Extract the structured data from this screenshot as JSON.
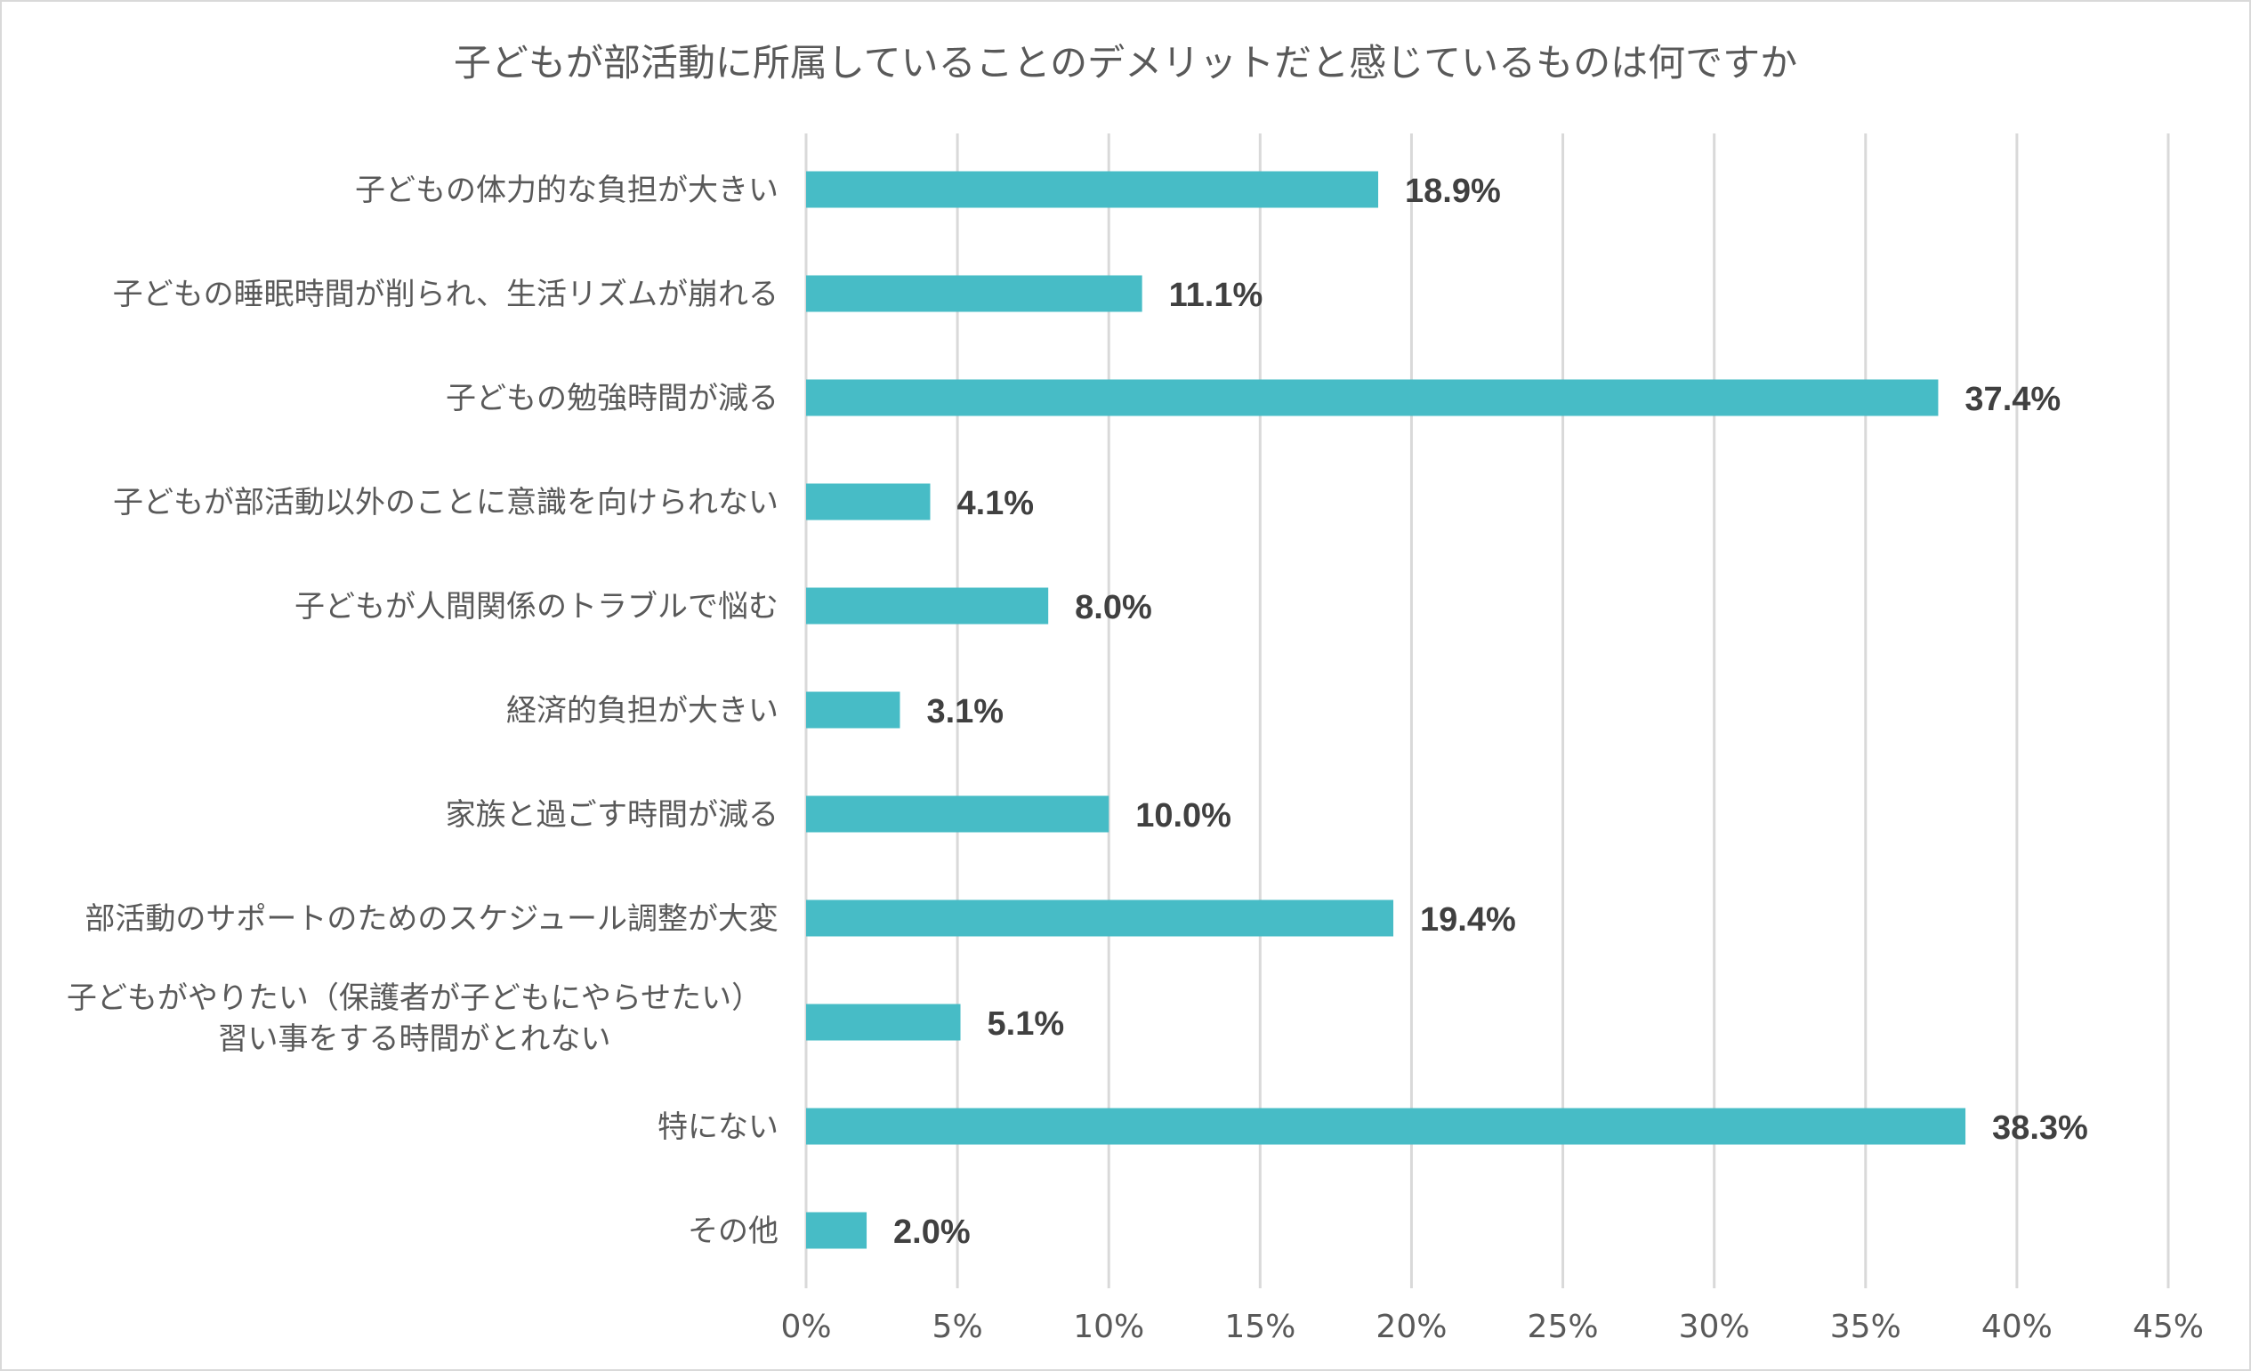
{
  "chart_data": {
    "type": "bar",
    "orientation": "horizontal",
    "title": "子どもが部活動に所属していることのデメリットだと感じているものは何ですか",
    "categories": [
      "子どもの体力的な負担が大きい",
      "子どもの睡眠時間が削られ、生活リズムが崩れる",
      "子どもの勉強時間が減る",
      "子どもが部活動以外のことに意識を向けられない",
      "子どもが人間関係のトラブルで悩む",
      "経済的負担が大きい",
      "家族と過ごす時間が減る",
      "部活動のサポートのためのスケジュール調整が大変",
      "子どもがやりたい（保護者が子どもにやらせたい）\n習い事をする時間がとれない",
      "特にない",
      "その他"
    ],
    "values": [
      18.9,
      11.1,
      37.4,
      4.1,
      8.0,
      3.1,
      10.0,
      19.4,
      5.1,
      38.3,
      2.0
    ],
    "value_labels": [
      "18.9%",
      "11.1%",
      "37.4%",
      "4.1%",
      "8.0%",
      "3.1%",
      "10.0%",
      "19.4%",
      "5.1%",
      "38.3%",
      "2.0%"
    ],
    "xlim": [
      0,
      45
    ],
    "x_ticks": [
      0,
      5,
      10,
      15,
      20,
      25,
      30,
      35,
      40,
      45
    ],
    "x_tick_labels": [
      "0%",
      "5%",
      "10%",
      "15%",
      "20%",
      "25%",
      "30%",
      "35%",
      "40%",
      "45%"
    ],
    "xlabel": "",
    "ylabel": "",
    "grid": "vertical",
    "legend": "none",
    "bar_color": "#47BCC6"
  }
}
